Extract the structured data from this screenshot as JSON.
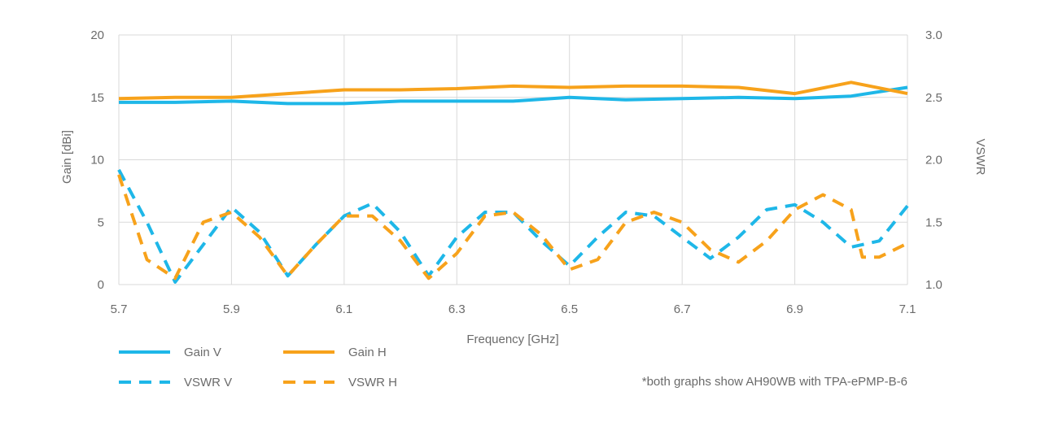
{
  "chart_data": {
    "type": "line",
    "xlabel": "Frequency [GHz]",
    "ylabel_left": "Gain [dBi]",
    "ylabel_right": "VSWR",
    "xlim": [
      5.7,
      7.1
    ],
    "ylim_left": [
      0,
      20
    ],
    "ylim_right": [
      1.0,
      3.0
    ],
    "x_ticks": [
      "5.7",
      "5.9",
      "6.1",
      "6.3",
      "6.5",
      "6.7",
      "6.9",
      "7.1"
    ],
    "y_ticks_left": [
      "0",
      "5",
      "10",
      "15",
      "20"
    ],
    "y_ticks_right": [
      "1.0",
      "1.5",
      "2.0",
      "2.5",
      "3.0"
    ],
    "grid": true,
    "legend_position": "bottom-left",
    "footnote": "*both graphs show AH90WB with TPA-ePMP-B-6",
    "series": [
      {
        "name": "Gain V",
        "axis": "left",
        "style": "solid",
        "color": "#1EB7E8",
        "x": [
          5.7,
          5.8,
          5.9,
          6.0,
          6.1,
          6.2,
          6.3,
          6.4,
          6.5,
          6.6,
          6.7,
          6.8,
          6.9,
          7.0,
          7.1
        ],
        "y": [
          14.6,
          14.6,
          14.7,
          14.5,
          14.5,
          14.7,
          14.7,
          14.7,
          15.0,
          14.8,
          14.9,
          15.0,
          14.9,
          15.1,
          15.8
        ]
      },
      {
        "name": "Gain H",
        "axis": "left",
        "style": "solid",
        "color": "#F7A21B",
        "x": [
          5.7,
          5.8,
          5.9,
          6.0,
          6.1,
          6.2,
          6.3,
          6.4,
          6.5,
          6.6,
          6.7,
          6.8,
          6.9,
          7.0,
          7.1
        ],
        "y": [
          14.9,
          15.0,
          15.0,
          15.3,
          15.6,
          15.6,
          15.7,
          15.9,
          15.8,
          15.9,
          15.9,
          15.8,
          15.3,
          16.2,
          15.3
        ]
      },
      {
        "name": "VSWR V",
        "axis": "right",
        "style": "dashed",
        "color": "#1EB7E8",
        "x": [
          5.7,
          5.75,
          5.8,
          5.85,
          5.9,
          5.95,
          6.0,
          6.05,
          6.1,
          6.15,
          6.2,
          6.25,
          6.3,
          6.35,
          6.4,
          6.45,
          6.5,
          6.55,
          6.6,
          6.65,
          6.7,
          6.75,
          6.8,
          6.85,
          6.9,
          6.95,
          7.0,
          7.05,
          7.1
        ],
        "y": [
          1.92,
          1.5,
          1.02,
          1.32,
          1.62,
          1.42,
          1.07,
          1.32,
          1.55,
          1.65,
          1.42,
          1.07,
          1.38,
          1.58,
          1.58,
          1.35,
          1.15,
          1.38,
          1.58,
          1.55,
          1.38,
          1.21,
          1.38,
          1.6,
          1.64,
          1.5,
          1.3,
          1.35,
          1.63
        ]
      },
      {
        "name": "VSWR H",
        "axis": "right",
        "style": "dashed",
        "color": "#F7A21B",
        "x": [
          5.7,
          5.75,
          5.8,
          5.85,
          5.9,
          5.95,
          6.0,
          6.05,
          6.1,
          6.15,
          6.2,
          6.25,
          6.3,
          6.35,
          6.4,
          6.45,
          6.5,
          6.55,
          6.6,
          6.65,
          6.7,
          6.75,
          6.8,
          6.85,
          6.9,
          6.95,
          7.0,
          7.02,
          7.05,
          7.1
        ],
        "y": [
          1.88,
          1.2,
          1.05,
          1.5,
          1.58,
          1.38,
          1.07,
          1.32,
          1.55,
          1.55,
          1.35,
          1.05,
          1.25,
          1.55,
          1.58,
          1.4,
          1.12,
          1.2,
          1.5,
          1.58,
          1.5,
          1.28,
          1.18,
          1.35,
          1.6,
          1.72,
          1.6,
          1.22,
          1.22,
          1.33
        ]
      }
    ]
  }
}
